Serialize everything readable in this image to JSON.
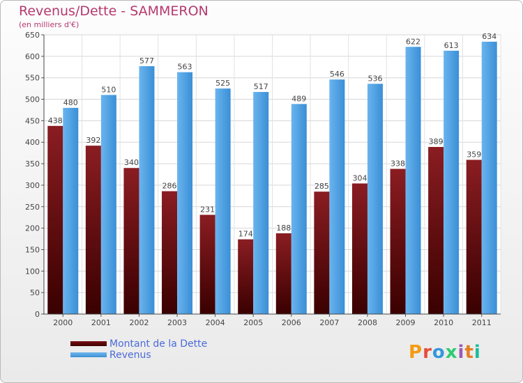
{
  "chart_data": {
    "type": "bar",
    "title": "Revenus/Dette - SAMMERON",
    "subtitle": "(en milliers d'€)",
    "categories": [
      "2000",
      "2001",
      "2002",
      "2003",
      "2004",
      "2005",
      "2006",
      "2007",
      "2008",
      "2009",
      "2010",
      "2011"
    ],
    "series": [
      {
        "name": "Montant de la Dette",
        "values": [
          438,
          392,
          340,
          286,
          231,
          174,
          188,
          285,
          304,
          338,
          389,
          359
        ],
        "color": "#6b0d12"
      },
      {
        "name": "Revenus",
        "values": [
          480,
          510,
          577,
          563,
          525,
          517,
          489,
          546,
          536,
          622,
          613,
          634
        ],
        "color": "#4a9fe3"
      }
    ],
    "ylim": [
      0,
      650
    ],
    "ytick_step": 50,
    "grid": true,
    "legend": "bottom-left"
  },
  "logo": {
    "text": "Proxiti",
    "colors": [
      "#f39c12",
      "#e74c3c",
      "#3498db",
      "#2ecc71",
      "#9b59b6",
      "#e67e22",
      "#1abc9c"
    ]
  }
}
